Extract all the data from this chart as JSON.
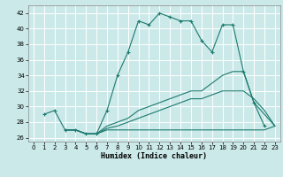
{
  "xlabel": "Humidex (Indice chaleur)",
  "xlim": [
    -0.5,
    23.5
  ],
  "ylim": [
    25.5,
    43.0
  ],
  "yticks": [
    26,
    28,
    30,
    32,
    34,
    36,
    38,
    40,
    42
  ],
  "xticks": [
    0,
    1,
    2,
    3,
    4,
    5,
    6,
    7,
    8,
    9,
    10,
    11,
    12,
    13,
    14,
    15,
    16,
    17,
    18,
    19,
    20,
    21,
    22,
    23
  ],
  "bg_color": "#cce9e9",
  "line_color": "#1a7a6e",
  "grid_color": "#ffffff",
  "lines": [
    {
      "x": [
        1,
        2,
        3,
        4,
        5,
        6,
        7,
        8,
        9,
        10,
        11,
        12,
        13,
        14,
        15,
        16,
        17,
        18,
        19,
        20,
        21,
        22
      ],
      "y": [
        29,
        29.5,
        27,
        27,
        26.5,
        26.5,
        29.5,
        34,
        37,
        41,
        40.5,
        42,
        41.5,
        41,
        41,
        38.5,
        37,
        40.5,
        40.5,
        34.5,
        30.5,
        27.5
      ],
      "marker": true
    },
    {
      "x": [
        3,
        4,
        5,
        6,
        7,
        8,
        9,
        10,
        11,
        12,
        13,
        14,
        15,
        16,
        17,
        18,
        19,
        20,
        21,
        22,
        23
      ],
      "y": [
        27,
        27,
        26.5,
        26.5,
        27,
        27,
        27,
        27,
        27,
        27,
        27,
        27,
        27,
        27,
        27,
        27,
        27,
        27,
        27,
        27,
        27.5
      ],
      "marker": false
    },
    {
      "x": [
        3,
        4,
        5,
        6,
        7,
        8,
        9,
        10,
        11,
        12,
        13,
        14,
        15,
        16,
        17,
        18,
        19,
        20,
        21,
        22,
        23
      ],
      "y": [
        27,
        27,
        26.5,
        26.5,
        27.2,
        27.5,
        28,
        28.5,
        29,
        29.5,
        30,
        30.5,
        31,
        31,
        31.5,
        32,
        32,
        32,
        31,
        29.5,
        27.5
      ],
      "marker": false
    },
    {
      "x": [
        3,
        4,
        5,
        6,
        7,
        8,
        9,
        10,
        11,
        12,
        13,
        14,
        15,
        16,
        17,
        18,
        19,
        20,
        21,
        22,
        23
      ],
      "y": [
        27,
        27,
        26.5,
        26.5,
        27.5,
        28,
        28.5,
        29.5,
        30,
        30.5,
        31,
        31.5,
        32,
        32,
        33,
        34,
        34.5,
        34.5,
        30.5,
        29,
        27.5
      ],
      "marker": false
    }
  ]
}
